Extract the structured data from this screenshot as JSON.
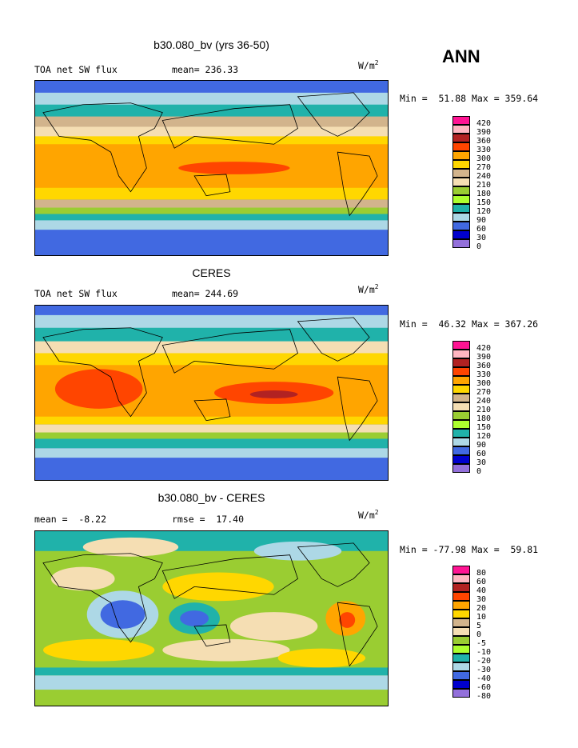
{
  "season": "ANN",
  "units_prefix": "W/m",
  "units_sup": "2",
  "panels": [
    {
      "title": "b30.080_bv (yrs 36-50)",
      "left": "TOA net SW flux",
      "center": "mean= 236.33",
      "minmax": "Min =  51.88 Max = 359.64",
      "levels": [
        "420",
        "390",
        "360",
        "330",
        "300",
        "270",
        "240",
        "210",
        "180",
        "150",
        "120",
        "90",
        "60",
        "30",
        "0"
      ],
      "colors": [
        "#ff1493",
        "#ffb6c1",
        "#b22222",
        "#ff4500",
        "#ffa500",
        "#ffd700",
        "#d2b48c",
        "#f5deb3",
        "#9acd32",
        "#adff2f",
        "#20b2aa",
        "#add8e6",
        "#4169e1",
        "#0000cd",
        "#9370db"
      ]
    },
    {
      "title": "CERES",
      "left": "TOA net SW flux",
      "center": "mean= 244.69",
      "minmax": "Min =  46.32 Max = 367.26",
      "levels": [
        "420",
        "390",
        "360",
        "330",
        "300",
        "270",
        "240",
        "210",
        "180",
        "150",
        "120",
        "90",
        "60",
        "30",
        "0"
      ],
      "colors": [
        "#ff1493",
        "#ffb6c1",
        "#b22222",
        "#ff4500",
        "#ffa500",
        "#ffd700",
        "#d2b48c",
        "#f5deb3",
        "#9acd32",
        "#adff2f",
        "#20b2aa",
        "#add8e6",
        "#4169e1",
        "#0000cd",
        "#9370db"
      ]
    },
    {
      "title": "b30.080_bv - CERES",
      "left": "mean =  -8.22",
      "center": "rmse =  17.40",
      "minmax": "Min = -77.98 Max =  59.81",
      "levels": [
        "80",
        "60",
        "40",
        "30",
        "20",
        "10",
        "5",
        "0",
        "-5",
        "-10",
        "-20",
        "-30",
        "-40",
        "-60",
        "-80"
      ],
      "colors": [
        "#ff1493",
        "#ffb6c1",
        "#b22222",
        "#ff4500",
        "#ffa500",
        "#ffd700",
        "#d2b48c",
        "#f5deb3",
        "#9acd32",
        "#adff2f",
        "#20b2aa",
        "#add8e6",
        "#4169e1",
        "#0000cd",
        "#9370db"
      ]
    }
  ]
}
